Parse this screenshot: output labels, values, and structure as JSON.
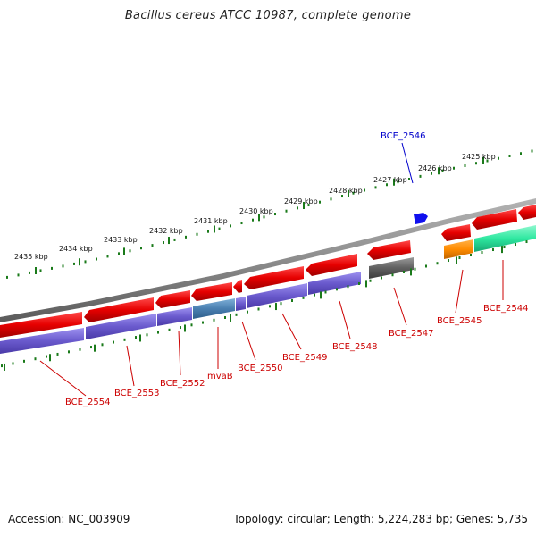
{
  "title": "Bacillus cereus ATCC 10987, complete genome",
  "footer": {
    "accession": "Accession: NC_003909",
    "summary": "Topology: circular; Length: 5,224,283 bp; Genes: 5,735"
  },
  "colors": {
    "backbone": "#8c8c8c",
    "cds": "#e8000b",
    "gene": "#6a5acd",
    "gene_special": "#4a7fb0",
    "pseudo": "#606060",
    "rna_orange": "#ff8c00",
    "rna_green": "#2ee8a0",
    "feature_blue": "#1010ee",
    "tick": "#1a7a1a",
    "label_red": "#cc0000",
    "label_blue": "#0000cc"
  },
  "kbp_labels": [
    "2435 kbp",
    "2434 kbp",
    "2433 kbp",
    "2432 kbp",
    "2431 kbp",
    "2430 kbp",
    "2429 kbp",
    "2428 kbp",
    "2427 kbp",
    "2426 kbp",
    "2425 kbp"
  ],
  "gene_labels": [
    "BCE_2554",
    "BCE_2553",
    "BCE_2552",
    "mvaB",
    "BCE_2550",
    "BCE_2549",
    "BCE_2548",
    "BCE_2547",
    "BCE_2545",
    "BCE_2544"
  ],
  "blue_label": "BCE_2546"
}
